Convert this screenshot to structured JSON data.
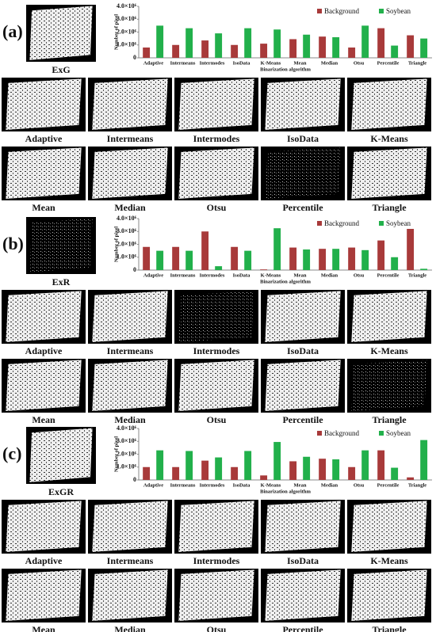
{
  "chart_data": [
    {
      "type": "bar",
      "y_label": "Number of pixel",
      "x_label": "Binarization algorithm",
      "categories": [
        "Adaptive",
        "Intermeans",
        "Intermodes",
        "IsoData",
        "K-Means",
        "Mean",
        "Median",
        "Otsu",
        "Percentile",
        "Triangle"
      ],
      "series": [
        {
          "name": "Background",
          "color": "#a83a3a",
          "values": [
            800000,
            1000000,
            1350000,
            1000000,
            1100000,
            1450000,
            1650000,
            800000,
            2300000,
            1750000
          ]
        },
        {
          "name": "Soybean",
          "color": "#22b04b",
          "values": [
            2500000,
            2300000,
            1900000,
            2300000,
            2200000,
            1800000,
            1600000,
            2500000,
            950000,
            1500000
          ]
        }
      ],
      "ylim": [
        0,
        4000000
      ],
      "yticks": [
        {
          "value": 0,
          "label": "0"
        },
        {
          "value": 1000000,
          "label": "1.0×10⁶"
        },
        {
          "value": 2000000,
          "label": "2.0×10⁶"
        },
        {
          "value": 3000000,
          "label": "3.0×10⁶"
        },
        {
          "value": 4000000,
          "label": "4.0×10⁶"
        }
      ],
      "legend": "top-right"
    },
    {
      "type": "bar",
      "y_label": "Number of pixel",
      "x_label": "Binarization algorithm",
      "categories": [
        "Adaptive",
        "Intermeans",
        "Intermodes",
        "IsoData",
        "K-Means",
        "Mean",
        "Median",
        "Otsu",
        "Percentile",
        "Triangle"
      ],
      "series": [
        {
          "name": "Background",
          "color": "#a83a3a",
          "values": [
            1800000,
            1800000,
            3000000,
            1800000,
            50000,
            1750000,
            1650000,
            1750000,
            2300000,
            3200000
          ]
        },
        {
          "name": "Soybean",
          "color": "#22b04b",
          "values": [
            1500000,
            1500000,
            300000,
            1500000,
            3250000,
            1600000,
            1650000,
            1550000,
            1000000,
            100000
          ]
        }
      ],
      "ylim": [
        0,
        4000000
      ],
      "yticks": [
        {
          "value": 0,
          "label": "0"
        },
        {
          "value": 1000000,
          "label": "1.0×10⁶"
        },
        {
          "value": 2000000,
          "label": "2.0×10⁶"
        },
        {
          "value": 3000000,
          "label": "3.0×10⁶"
        },
        {
          "value": 4000000,
          "label": "4.0×10⁶"
        }
      ],
      "legend": "top-right"
    },
    {
      "type": "bar",
      "y_label": "Number of pixel",
      "x_label": "Binarization algorithm",
      "categories": [
        "Adaptive",
        "Intermeans",
        "Intermodes",
        "IsoData",
        "K-Means",
        "Mean",
        "Median",
        "Otsu",
        "Percentile",
        "Triangle"
      ],
      "series": [
        {
          "name": "Background",
          "color": "#a83a3a",
          "values": [
            1000000,
            1000000,
            1500000,
            1000000,
            350000,
            1450000,
            1650000,
            1000000,
            2300000,
            200000
          ]
        },
        {
          "name": "Soybean",
          "color": "#22b04b",
          "values": [
            2300000,
            2250000,
            1750000,
            2250000,
            2950000,
            1800000,
            1600000,
            2300000,
            950000,
            3100000
          ]
        }
      ],
      "ylim": [
        0,
        4000000
      ],
      "yticks": [
        {
          "value": 0,
          "label": "0"
        },
        {
          "value": 1000000,
          "label": "1.0×10⁶"
        },
        {
          "value": 2000000,
          "label": "2.0×10⁶"
        },
        {
          "value": 3000000,
          "label": "3.0×10⁶"
        },
        {
          "value": 4000000,
          "label": "4.0×10⁶"
        }
      ],
      "legend": "top-right"
    }
  ],
  "panels": [
    {
      "label": "(a)",
      "index_image": "ExG",
      "images": [
        "Adaptive",
        "Intermeans",
        "Intermodes",
        "IsoData",
        "K-Means",
        "Mean",
        "Median",
        "Otsu",
        "Percentile",
        "Triangle"
      ]
    },
    {
      "label": "(b)",
      "index_image": "ExR",
      "images": [
        "Adaptive",
        "Intermeans",
        "Intermodes",
        "IsoData",
        "K-Means",
        "Mean",
        "Median",
        "Otsu",
        "Percentile",
        "Triangle"
      ]
    },
    {
      "label": "(c)",
      "index_image": "ExGR",
      "images": [
        "Adaptive",
        "Intermeans",
        "Intermodes",
        "IsoData",
        "K-Means",
        "Mean",
        "Median",
        "Otsu",
        "Percentile",
        "Triangle"
      ]
    }
  ]
}
